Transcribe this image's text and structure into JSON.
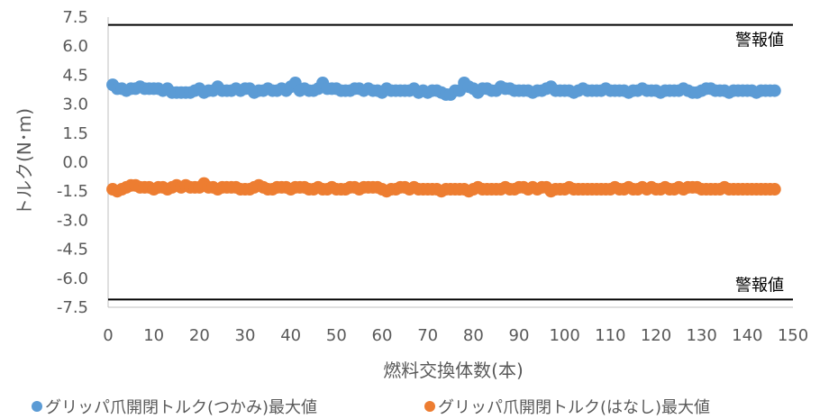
{
  "chart_data": {
    "type": "scatter",
    "xlabel": "燃料交換体数(本)",
    "ylabel": "トルク(N･m)",
    "xlim": [
      0,
      150
    ],
    "ylim": [
      -7.5,
      7.5
    ],
    "xticks": [
      0,
      10,
      20,
      30,
      40,
      50,
      60,
      70,
      80,
      90,
      100,
      110,
      120,
      130,
      140,
      150
    ],
    "yticks": [
      "7.5",
      "6.0",
      "4.5",
      "3.0",
      "1.5",
      "0.0",
      "-1.5",
      "-3.0",
      "-4.5",
      "-6.0",
      "-7.5"
    ],
    "grid": false,
    "legend_position": "bottom",
    "alarm_lines": [
      {
        "value": 7.1,
        "label": "警報値"
      },
      {
        "value": -7.1,
        "label": "警報値"
      }
    ],
    "series": [
      {
        "name": "グリッパ爪開閉トルク(つかみ)最大値",
        "color": "#5B9BD5",
        "x": [
          1,
          2,
          3,
          4,
          5,
          6,
          7,
          8,
          9,
          10,
          11,
          12,
          13,
          14,
          15,
          16,
          17,
          18,
          19,
          20,
          21,
          22,
          23,
          24,
          25,
          26,
          27,
          28,
          29,
          30,
          31,
          32,
          33,
          34,
          35,
          36,
          37,
          38,
          39,
          40,
          41,
          42,
          43,
          44,
          45,
          46,
          47,
          48,
          49,
          50,
          51,
          52,
          53,
          54,
          55,
          56,
          57,
          58,
          59,
          60,
          61,
          62,
          63,
          64,
          65,
          66,
          67,
          68,
          69,
          70,
          71,
          72,
          73,
          74,
          75,
          76,
          77,
          78,
          79,
          80,
          81,
          82,
          83,
          84,
          85,
          86,
          87,
          88,
          89,
          90,
          91,
          92,
          93,
          94,
          95,
          96,
          97,
          98,
          99,
          100,
          101,
          102,
          103,
          104,
          105,
          106,
          107,
          108,
          109,
          110,
          111,
          112,
          113,
          114,
          115,
          116,
          117,
          118,
          119,
          120,
          121,
          122,
          123,
          124,
          125,
          126,
          127,
          128,
          129,
          130,
          131,
          132,
          133,
          134,
          135,
          136,
          137,
          138,
          139,
          140,
          141,
          142,
          143,
          144,
          145,
          146
        ],
        "values": [
          4.0,
          3.8,
          3.8,
          3.7,
          3.8,
          3.8,
          3.9,
          3.8,
          3.8,
          3.8,
          3.8,
          3.7,
          3.8,
          3.6,
          3.6,
          3.6,
          3.6,
          3.6,
          3.7,
          3.8,
          3.6,
          3.7,
          3.7,
          3.9,
          3.7,
          3.7,
          3.7,
          3.8,
          3.7,
          3.8,
          3.8,
          3.6,
          3.7,
          3.7,
          3.8,
          3.7,
          3.7,
          3.8,
          3.7,
          3.9,
          4.1,
          3.7,
          3.8,
          3.7,
          3.7,
          3.8,
          4.1,
          3.8,
          3.8,
          3.8,
          3.7,
          3.7,
          3.7,
          3.8,
          3.8,
          3.7,
          3.8,
          3.7,
          3.7,
          3.6,
          3.8,
          3.7,
          3.7,
          3.7,
          3.7,
          3.7,
          3.8,
          3.6,
          3.7,
          3.6,
          3.7,
          3.7,
          3.6,
          3.5,
          3.5,
          3.7,
          3.7,
          4.1,
          3.9,
          3.8,
          3.6,
          3.8,
          3.8,
          3.7,
          3.7,
          3.9,
          3.8,
          3.8,
          3.7,
          3.7,
          3.7,
          3.7,
          3.6,
          3.7,
          3.7,
          3.8,
          3.9,
          3.7,
          3.7,
          3.7,
          3.7,
          3.6,
          3.7,
          3.8,
          3.7,
          3.7,
          3.7,
          3.7,
          3.8,
          3.7,
          3.7,
          3.7,
          3.7,
          3.6,
          3.7,
          3.7,
          3.8,
          3.7,
          3.7,
          3.7,
          3.6,
          3.7,
          3.7,
          3.7,
          3.7,
          3.8,
          3.7,
          3.6,
          3.6,
          3.7,
          3.8,
          3.8,
          3.7,
          3.7,
          3.7,
          3.6,
          3.7,
          3.7,
          3.7,
          3.7,
          3.7,
          3.6,
          3.7,
          3.7,
          3.7,
          3.7
        ]
      },
      {
        "name": "グリッパ爪開閉トルク(はなし)最大値",
        "color": "#ED7D31",
        "x": [
          1,
          2,
          3,
          4,
          5,
          6,
          7,
          8,
          9,
          10,
          11,
          12,
          13,
          14,
          15,
          16,
          17,
          18,
          19,
          20,
          21,
          22,
          23,
          24,
          25,
          26,
          27,
          28,
          29,
          30,
          31,
          32,
          33,
          34,
          35,
          36,
          37,
          38,
          39,
          40,
          41,
          42,
          43,
          44,
          45,
          46,
          47,
          48,
          49,
          50,
          51,
          52,
          53,
          54,
          55,
          56,
          57,
          58,
          59,
          60,
          61,
          62,
          63,
          64,
          65,
          66,
          67,
          68,
          69,
          70,
          71,
          72,
          73,
          74,
          75,
          76,
          77,
          78,
          79,
          80,
          81,
          82,
          83,
          84,
          85,
          86,
          87,
          88,
          89,
          90,
          91,
          92,
          93,
          94,
          95,
          96,
          97,
          98,
          99,
          100,
          101,
          102,
          103,
          104,
          105,
          106,
          107,
          108,
          109,
          110,
          111,
          112,
          113,
          114,
          115,
          116,
          117,
          118,
          119,
          120,
          121,
          122,
          123,
          124,
          125,
          126,
          127,
          128,
          129,
          130,
          131,
          132,
          133,
          134,
          135,
          136,
          137,
          138,
          139,
          140,
          141,
          142,
          143,
          144,
          145,
          146
        ],
        "values": [
          -1.4,
          -1.5,
          -1.4,
          -1.3,
          -1.2,
          -1.2,
          -1.3,
          -1.3,
          -1.3,
          -1.4,
          -1.3,
          -1.3,
          -1.4,
          -1.3,
          -1.2,
          -1.3,
          -1.2,
          -1.3,
          -1.3,
          -1.3,
          -1.1,
          -1.3,
          -1.3,
          -1.4,
          -1.3,
          -1.3,
          -1.3,
          -1.3,
          -1.4,
          -1.4,
          -1.4,
          -1.3,
          -1.2,
          -1.3,
          -1.4,
          -1.4,
          -1.3,
          -1.3,
          -1.3,
          -1.4,
          -1.3,
          -1.3,
          -1.3,
          -1.4,
          -1.4,
          -1.3,
          -1.4,
          -1.4,
          -1.3,
          -1.4,
          -1.4,
          -1.4,
          -1.3,
          -1.3,
          -1.4,
          -1.3,
          -1.3,
          -1.3,
          -1.3,
          -1.4,
          -1.5,
          -1.4,
          -1.4,
          -1.3,
          -1.3,
          -1.4,
          -1.3,
          -1.4,
          -1.4,
          -1.4,
          -1.4,
          -1.4,
          -1.5,
          -1.4,
          -1.4,
          -1.4,
          -1.4,
          -1.4,
          -1.5,
          -1.4,
          -1.3,
          -1.4,
          -1.4,
          -1.4,
          -1.4,
          -1.4,
          -1.3,
          -1.4,
          -1.4,
          -1.3,
          -1.3,
          -1.4,
          -1.3,
          -1.4,
          -1.3,
          -1.3,
          -1.5,
          -1.4,
          -1.4,
          -1.4,
          -1.3,
          -1.4,
          -1.4,
          -1.4,
          -1.4,
          -1.4,
          -1.4,
          -1.4,
          -1.4,
          -1.4,
          -1.3,
          -1.4,
          -1.4,
          -1.3,
          -1.4,
          -1.4,
          -1.3,
          -1.4,
          -1.3,
          -1.4,
          -1.4,
          -1.3,
          -1.4,
          -1.4,
          -1.3,
          -1.4,
          -1.3,
          -1.3,
          -1.3,
          -1.4,
          -1.4,
          -1.4,
          -1.4,
          -1.4,
          -1.3,
          -1.4,
          -1.4,
          -1.4,
          -1.4,
          -1.4,
          -1.4,
          -1.4,
          -1.4,
          -1.4,
          -1.4,
          -1.4
        ]
      }
    ]
  }
}
